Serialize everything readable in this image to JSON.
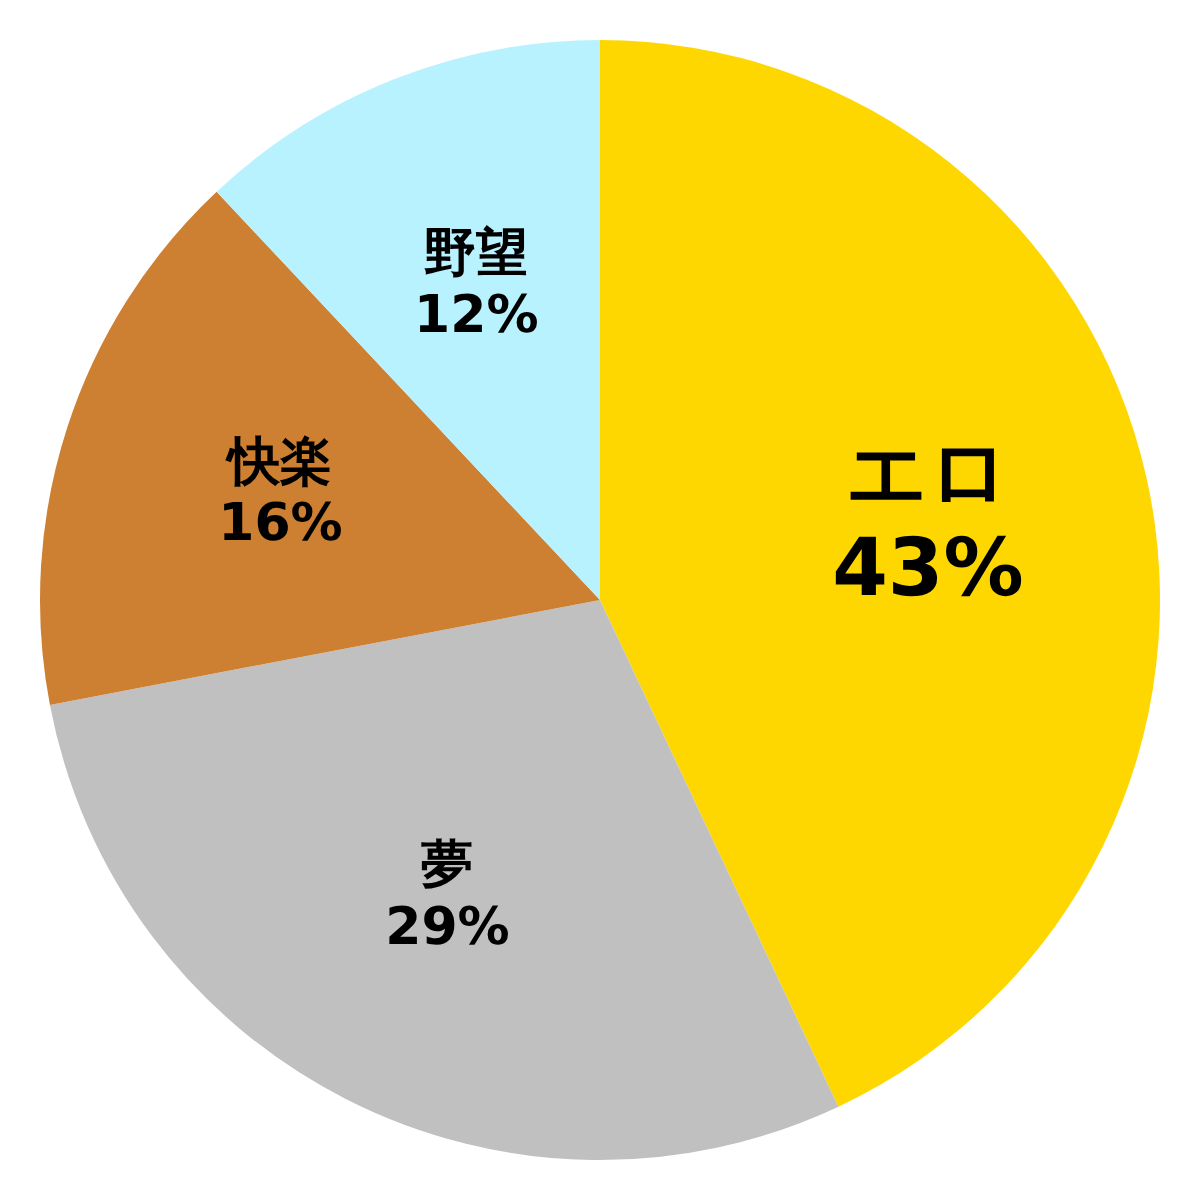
{
  "chart_data": {
    "type": "pie",
    "categories": [
      "エロ",
      "夢",
      "快楽",
      "野望"
    ],
    "values": [
      43,
      29,
      16,
      12
    ],
    "value_labels": [
      "43%",
      "29%",
      "16%",
      "12%"
    ],
    "colors": [
      "#ffd700",
      "#c0c0c0",
      "#cd7f32",
      "#b9f2ff"
    ],
    "legend": false
  }
}
